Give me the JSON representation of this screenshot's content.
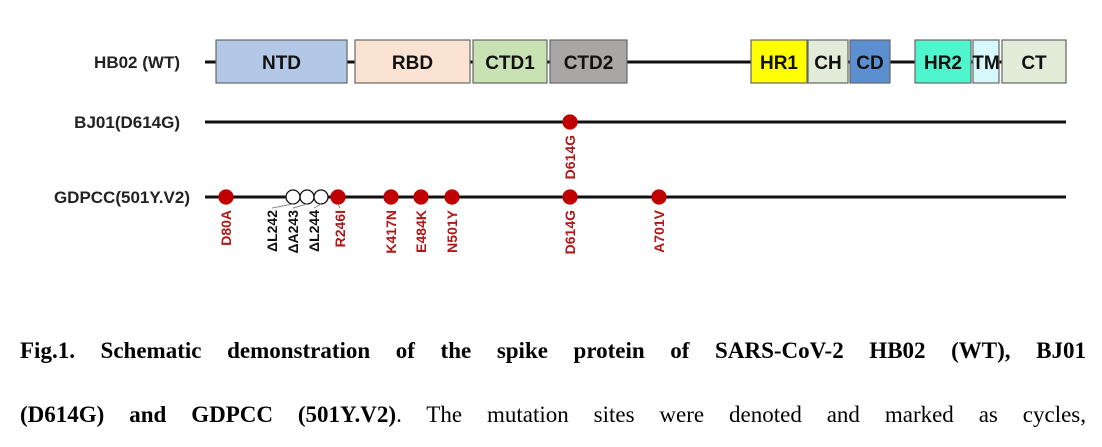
{
  "rows": [
    {
      "label": "HB02 (WT)"
    },
    {
      "label": "BJ01(D614G)"
    },
    {
      "label": "GDPCC(501Y.V2)"
    }
  ],
  "domains": [
    {
      "label": "NTD",
      "color": "#b3c7e6"
    },
    {
      "label": "RBD",
      "color": "#fae3d3"
    },
    {
      "label": "CTD1",
      "color": "#c8e2b4"
    },
    {
      "label": "CTD2",
      "color": "#a9a6a6"
    },
    {
      "label": "HR1",
      "color": "#ffff00"
    },
    {
      "label": "CH",
      "color": "#e3ecd8"
    },
    {
      "label": "CD",
      "color": "#5b8fd0"
    },
    {
      "label": "HR2",
      "color": "#4ff5cc"
    },
    {
      "label": "TM",
      "color": "#d6f8fb"
    },
    {
      "label": "CT",
      "color": "#e3ecd8"
    }
  ],
  "bj01_mutations": [
    {
      "label": "D614G",
      "type": "substitution"
    }
  ],
  "gdpcc_mutations": [
    {
      "label": "D80A",
      "type": "substitution"
    },
    {
      "label": "ΔL242",
      "type": "deletion"
    },
    {
      "label": "ΔA243",
      "type": "deletion"
    },
    {
      "label": "ΔL244",
      "type": "deletion"
    },
    {
      "label": "R246I",
      "type": "substitution"
    },
    {
      "label": "K417N",
      "type": "substitution"
    },
    {
      "label": "E484K",
      "type": "substitution"
    },
    {
      "label": "N501Y",
      "type": "substitution"
    },
    {
      "label": "D614G",
      "type": "substitution"
    },
    {
      "label": "A701V",
      "type": "substitution"
    }
  ],
  "mutation_color": "#c00000",
  "caption": {
    "line1": "Fig.1. Schematic demonstration of the spike protein of SARS-CoV-2 HB02 (WT), BJ01",
    "line2_bold": "(D614G) and GDPCC (501Y.V2)",
    "line2_rest": ". The mutation sites were denoted and marked as cycles,"
  }
}
